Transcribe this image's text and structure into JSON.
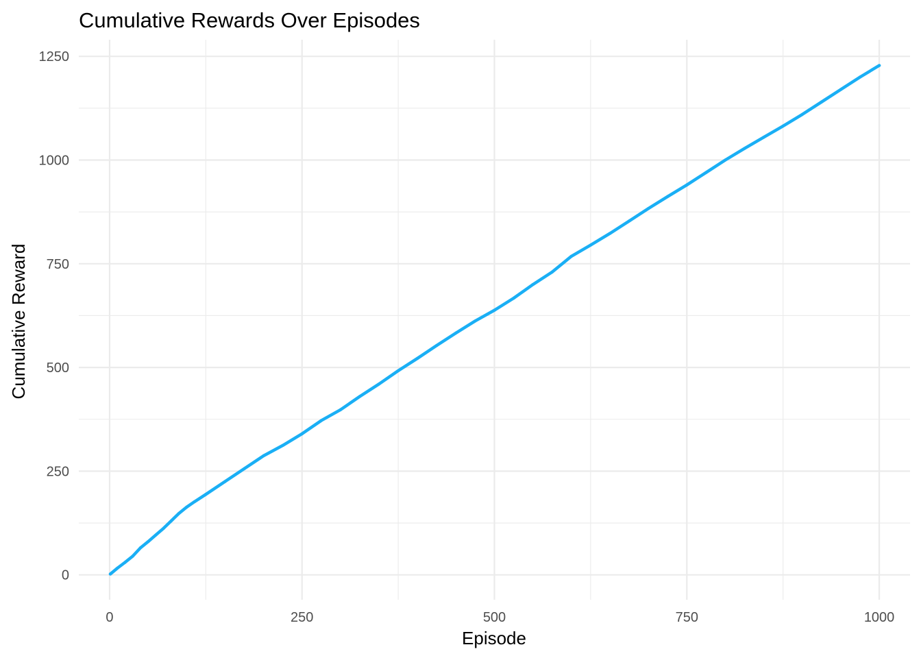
{
  "chart_data": {
    "type": "line",
    "title": "Cumulative Rewards Over Episodes",
    "xlabel": "Episode",
    "ylabel": "Cumulative Reward",
    "xlim": [
      -40,
      1040
    ],
    "ylim": [
      -60,
      1290
    ],
    "x_ticks": [
      0,
      250,
      500,
      750,
      1000
    ],
    "x_tick_labels": [
      "0",
      "250",
      "500",
      "750",
      "1000"
    ],
    "y_ticks": [
      0,
      250,
      500,
      750,
      1000,
      1250
    ],
    "y_tick_labels": [
      "0",
      "250",
      "500",
      "750",
      "1000",
      "1250"
    ],
    "grid": true,
    "legend": "none",
    "line_color": "#1aaff5",
    "series": [
      {
        "x": [
          1,
          10,
          20,
          30,
          40,
          50,
          60,
          70,
          80,
          90,
          100,
          110,
          125,
          150,
          175,
          200,
          225,
          250,
          275,
          300,
          325,
          350,
          375,
          400,
          425,
          450,
          475,
          500,
          525,
          550,
          575,
          600,
          625,
          650,
          675,
          700,
          725,
          750,
          775,
          800,
          825,
          850,
          875,
          900,
          925,
          950,
          975,
          1000
        ],
        "y": [
          2,
          16,
          30,
          45,
          65,
          80,
          96,
          112,
          130,
          148,
          163,
          176,
          194,
          225,
          256,
          287,
          312,
          340,
          372,
          398,
          430,
          460,
          492,
          522,
          553,
          583,
          612,
          638,
          667,
          700,
          730,
          768,
          795,
          823,
          853,
          883,
          912,
          940,
          970,
          1000,
          1028,
          1055,
          1082,
          1110,
          1140,
          1170,
          1200,
          1228
        ]
      }
    ]
  }
}
